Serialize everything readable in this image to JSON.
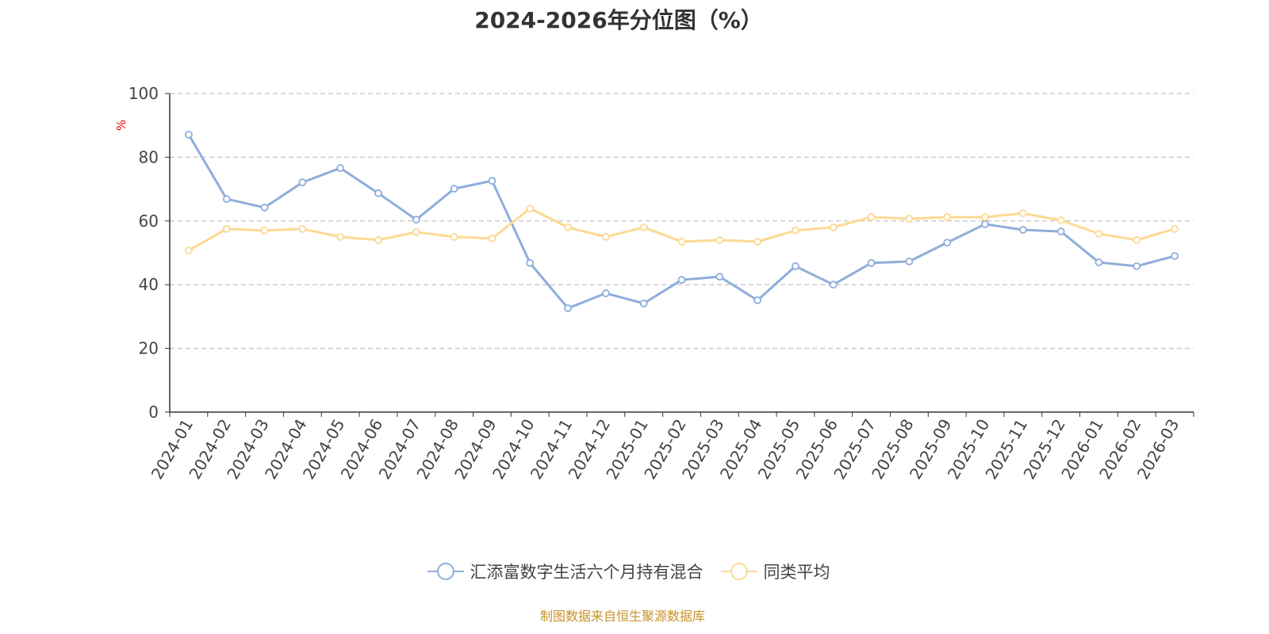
{
  "chart_data": {
    "type": "line",
    "title": "2024-2026年分位图（%）",
    "ylabel": "%",
    "xlabel": "",
    "ylim": [
      0,
      100
    ],
    "yticks": [
      0,
      20,
      40,
      60,
      80,
      100
    ],
    "grid": true,
    "legend_position": "bottom",
    "categories": [
      "2024-01",
      "2024-02",
      "2024-03",
      "2024-04",
      "2024-05",
      "2024-06",
      "2024-07",
      "2024-08",
      "2024-09",
      "2024-10",
      "2024-11",
      "2024-12",
      "2025-01",
      "2025-02",
      "2025-03",
      "2025-04",
      "2025-05",
      "2025-06",
      "2025-07",
      "2025-08",
      "2025-09",
      "2025-10",
      "2025-11",
      "2025-12",
      "2026-01",
      "2026-02",
      "2026-03"
    ],
    "series": [
      {
        "name": "汇添富数字生活六个月持有混合",
        "color": "#8eaedb",
        "values": [
          87.1,
          66.9,
          64.2,
          72.1,
          76.6,
          68.7,
          60.4,
          70.1,
          72.6,
          46.8,
          32.6,
          37.3,
          34.1,
          41.5,
          42.5,
          35.1,
          45.8,
          40.0,
          46.8,
          47.3,
          53.2,
          59.0,
          57.2,
          56.7,
          47.0,
          45.8,
          49.0
        ]
      },
      {
        "name": "同类平均",
        "color": "#fcd993",
        "values": [
          50.7,
          57.5,
          57.0,
          57.5,
          55.0,
          54.0,
          56.5,
          55.0,
          54.5,
          63.9,
          58.0,
          55.0,
          58.0,
          53.5,
          54.0,
          53.5,
          57.0,
          58.0,
          61.2,
          60.7,
          61.2,
          61.2,
          62.4,
          60.2,
          56.0,
          54.0,
          57.5
        ]
      }
    ]
  },
  "source": "制图数据来自恒生聚源数据库"
}
